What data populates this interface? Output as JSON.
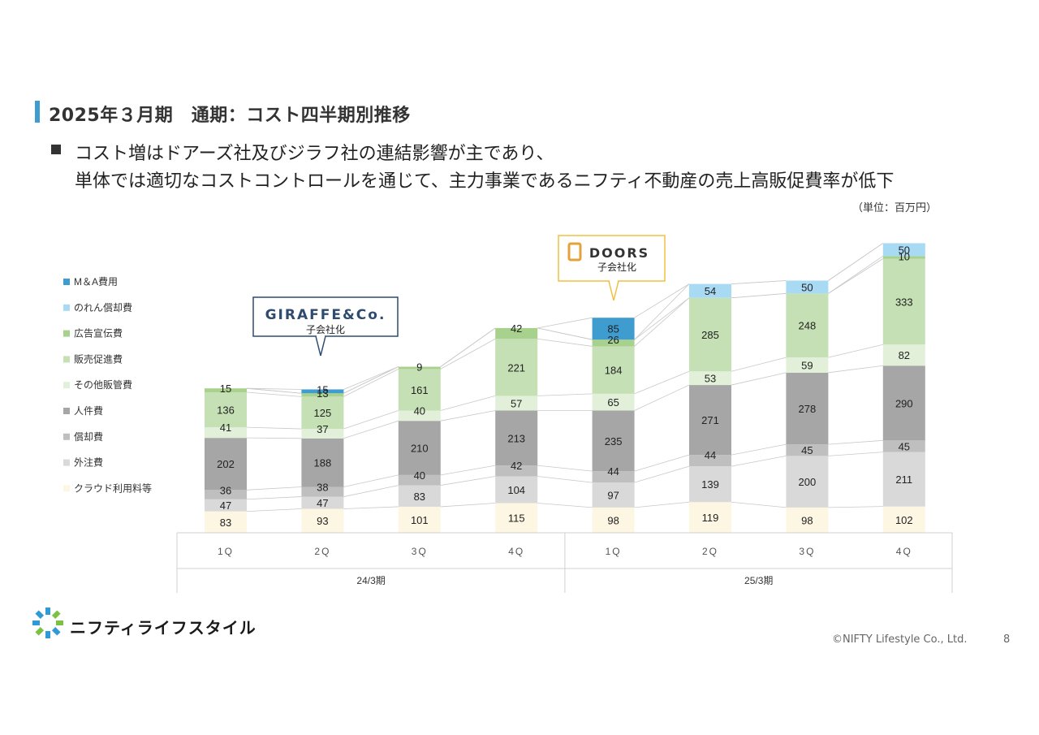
{
  "header": {
    "title": "2025年３月期　通期：コスト四半期別推移",
    "subtitle_line1": "コスト増はドアーズ社及びジラフ社の連結影響が主であり、",
    "subtitle_line2": "単体では適切なコストコントロールを通じて、主力事業であるニフティ不動産の売上高販促費率が低下",
    "unit": "（単位：百万円）"
  },
  "callouts": {
    "giraffe": {
      "logo": "GIRAFFE&Co.",
      "text": "子会社化"
    },
    "doors": {
      "logo": "DOORS",
      "text": "子会社化"
    }
  },
  "footer": {
    "logo_text": "ニフティライフスタイル",
    "copyright": "©NIFTY Lifestyle Co., Ltd.",
    "page": "8"
  },
  "chart_data": {
    "type": "bar",
    "stacked": true,
    "categories": [
      "1Q",
      "2Q",
      "3Q",
      "4Q",
      "1Q",
      "2Q",
      "3Q",
      "4Q"
    ],
    "groups": [
      {
        "label": "24/3期",
        "span": [
          0,
          3
        ]
      },
      {
        "label": "25/3期",
        "span": [
          4,
          7
        ]
      }
    ],
    "legend_position": "left",
    "series": [
      {
        "name": "クラウド利用料等",
        "color": "#fdf6e3",
        "values": [
          83,
          93,
          101,
          115,
          98,
          119,
          98,
          102
        ]
      },
      {
        "name": "外注費",
        "color": "#d9d9d9",
        "values": [
          47,
          47,
          83,
          104,
          97,
          139,
          200,
          211
        ]
      },
      {
        "name": "償却費",
        "color": "#bfbfbf",
        "values": [
          36,
          38,
          40,
          42,
          44,
          44,
          45,
          45
        ]
      },
      {
        "name": "人件費",
        "color": "#a6a6a6",
        "values": [
          202,
          188,
          210,
          213,
          235,
          271,
          278,
          290
        ]
      },
      {
        "name": "その他販管費",
        "color": "#e2f0d9",
        "values": [
          41,
          37,
          40,
          57,
          65,
          53,
          59,
          82
        ]
      },
      {
        "name": "販売促進費",
        "color": "#c5e0b4",
        "values": [
          136,
          125,
          161,
          221,
          184,
          285,
          248,
          333
        ]
      },
      {
        "name": "広告宣伝費",
        "color": "#a9d18e",
        "values": [
          15,
          13,
          9,
          42,
          26,
          0,
          0,
          10
        ]
      },
      {
        "name": "のれん償却費",
        "color": "#a9daf3",
        "values": [
          0,
          0,
          0,
          0,
          0,
          54,
          50,
          50
        ]
      },
      {
        "name": "M＆A費用",
        "color": "#3e9ccf",
        "values": [
          0,
          15,
          0,
          0,
          85,
          0,
          0,
          0
        ]
      }
    ],
    "legend_order": [
      "M＆A費用",
      "のれん償却費",
      "広告宣伝費",
      "販売促進費",
      "その他販管費",
      "人件費",
      "償却費",
      "外注費",
      "クラウド利用料等"
    ],
    "data_labels": [
      [
        "83",
        "47",
        "36",
        "202",
        "41",
        "136",
        "15",
        "",
        ""
      ],
      [
        "93",
        "47",
        "38",
        "188",
        "37",
        "125",
        "13",
        "",
        "15"
      ],
      [
        "101",
        "83",
        "40",
        "210",
        "40",
        "161",
        "9",
        "",
        ""
      ],
      [
        "115",
        "104",
        "42",
        "213",
        "57",
        "221",
        "42",
        "",
        ""
      ],
      [
        "98",
        "97",
        "44",
        "235",
        "65",
        "184",
        "26",
        "",
        "85"
      ],
      [
        "119",
        "139",
        "44",
        "271",
        "53",
        "285",
        "",
        "54",
        ""
      ],
      [
        "98",
        "200",
        "45",
        "278",
        "59",
        "248",
        "",
        "50",
        ""
      ],
      [
        "102",
        "211",
        "45",
        "290",
        "82",
        "333",
        "10",
        "50",
        ""
      ]
    ]
  }
}
